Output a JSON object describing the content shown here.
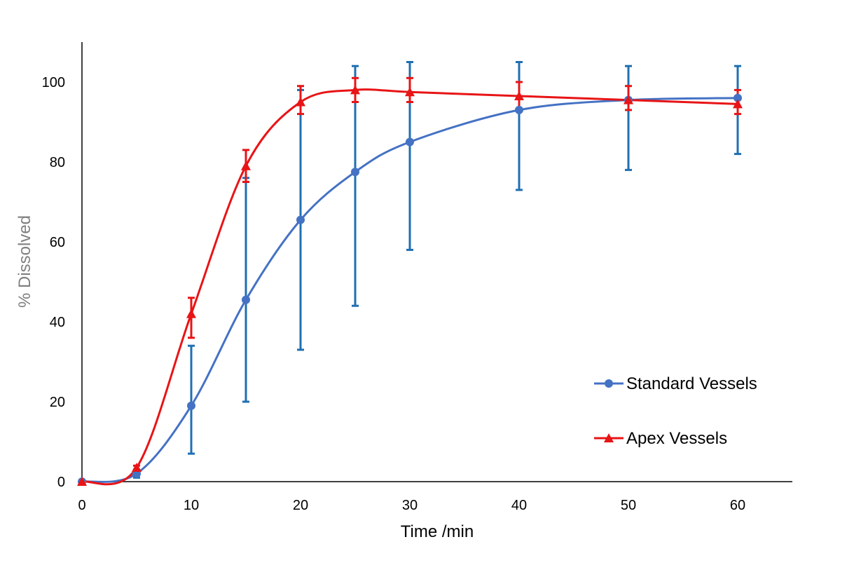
{
  "chart_data": {
    "type": "line",
    "xlabel": "Time /min",
    "ylabel": "% Dissolved",
    "x": [
      0,
      5,
      10,
      15,
      20,
      25,
      30,
      40,
      50,
      60
    ],
    "xlim": [
      0,
      65
    ],
    "ylim": [
      0,
      110
    ],
    "x_ticks": [
      0,
      10,
      20,
      30,
      40,
      50,
      60
    ],
    "y_ticks": [
      0,
      20,
      40,
      60,
      80,
      100
    ],
    "x_tick_labels": [
      "0",
      "10",
      "20",
      "30",
      "40",
      "50",
      "60"
    ],
    "y_tick_labels": [
      "0",
      "20",
      "40",
      "60",
      "80",
      "100"
    ],
    "grid": false,
    "legend_position": "right",
    "series": [
      {
        "name": "Standard Vessels",
        "marker": "circle",
        "line_color": "#4472C4",
        "errorbar_color": "#1F6FB2",
        "values": [
          0,
          2,
          19,
          45.5,
          65.5,
          77.5,
          85,
          93,
          95.5,
          96
        ],
        "err_low": [
          0,
          1,
          7,
          20,
          33,
          44,
          58,
          73,
          78,
          82
        ],
        "err_high": [
          0,
          3,
          34,
          76,
          98,
          104,
          105,
          105,
          104,
          104
        ]
      },
      {
        "name": "Apex Vessels",
        "marker": "triangle",
        "line_color": "#E81416",
        "errorbar_color": "#E81416",
        "values": [
          0,
          3.5,
          42,
          79,
          95,
          98,
          97.5,
          96.5,
          95.5,
          94.5
        ],
        "err_low": [
          0,
          3,
          36,
          75,
          92,
          95,
          95,
          93,
          93,
          92
        ],
        "err_high": [
          0,
          4,
          46,
          83,
          99,
          101,
          101,
          100,
          99,
          98
        ]
      }
    ],
    "colors": {
      "axis": "#000000",
      "ylabel": "#808080"
    }
  }
}
